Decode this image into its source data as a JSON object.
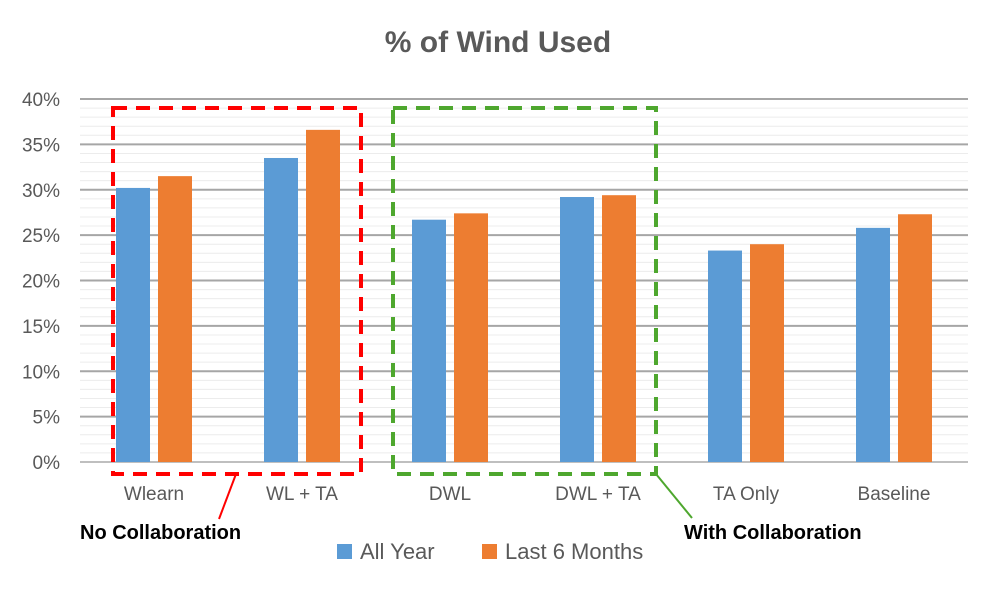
{
  "chart_data": {
    "type": "bar",
    "title": "% of Wind Used",
    "categories": [
      "Wlearn",
      "WL + TA",
      "DWL",
      "DWL + TA",
      "TA Only",
      "Baseline"
    ],
    "series": [
      {
        "name": "All Year",
        "color": "#5b9bd5",
        "values": [
          30.2,
          33.5,
          26.7,
          29.2,
          23.3,
          25.8
        ]
      },
      {
        "name": "Last 6 Months",
        "color": "#ed7d31",
        "values": [
          31.5,
          36.6,
          27.4,
          29.4,
          24.0,
          27.3
        ]
      }
    ],
    "ylim": [
      0,
      40
    ],
    "yticks": [
      0,
      5,
      10,
      15,
      20,
      25,
      30,
      35,
      40
    ],
    "ytick_labels": [
      "0%",
      "5%",
      "10%",
      "15%",
      "20%",
      "25%",
      "30%",
      "35%",
      "40%"
    ],
    "grid": true,
    "legend_position": "bottom",
    "annotations": [
      {
        "text": "No Collaboration",
        "color": "#ff0000",
        "categories": [
          "Wlearn",
          "WL + TA"
        ]
      },
      {
        "text": "With Collaboration",
        "color": "#4ea72e",
        "categories": [
          "DWL",
          "DWL + TA"
        ]
      }
    ]
  }
}
